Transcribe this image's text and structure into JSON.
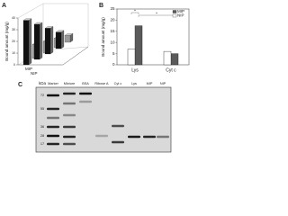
{
  "chart_data": [
    {
      "type": "bar3d",
      "label": "A",
      "y_label": "Bound amount (mg/g)",
      "categories": [
        null,
        null,
        null,
        null
      ],
      "series": [
        {
          "name": "MIP",
          "color": "#111111",
          "values": [
            38,
            30,
            22,
            14
          ]
        },
        {
          "name": "NIP",
          "color": "#9a9a9a",
          "values": [
            12,
            10,
            8,
            6
          ]
        }
      ],
      "ylim": [
        0,
        40
      ],
      "yticks": [
        0,
        10,
        20,
        30,
        40
      ]
    },
    {
      "type": "bar",
      "label": "B",
      "y_label": "Bound amount (mg/g)",
      "categories": [
        "Lys",
        "Cyt c"
      ],
      "series": [
        {
          "name": "MIP",
          "color": "#5a5a5a",
          "values": [
            17.5,
            5
          ]
        },
        {
          "name": "NIP",
          "color": "#ffffff",
          "values": [
            7,
            6
          ]
        }
      ],
      "ylim": [
        0,
        25
      ],
      "yticks": [
        0,
        5,
        10,
        15,
        20,
        25
      ],
      "annotations": [
        "*",
        "*"
      ],
      "legend": "top-right"
    }
  ],
  "gel": {
    "label": "C",
    "unit": "kDa",
    "lanes": [
      "Marker",
      "Mixture",
      "BSA",
      "Ribose A",
      "Cyt c",
      "Lys",
      "MIP",
      "NIP"
    ],
    "mw": [
      72,
      55,
      36,
      28,
      17
    ]
  }
}
